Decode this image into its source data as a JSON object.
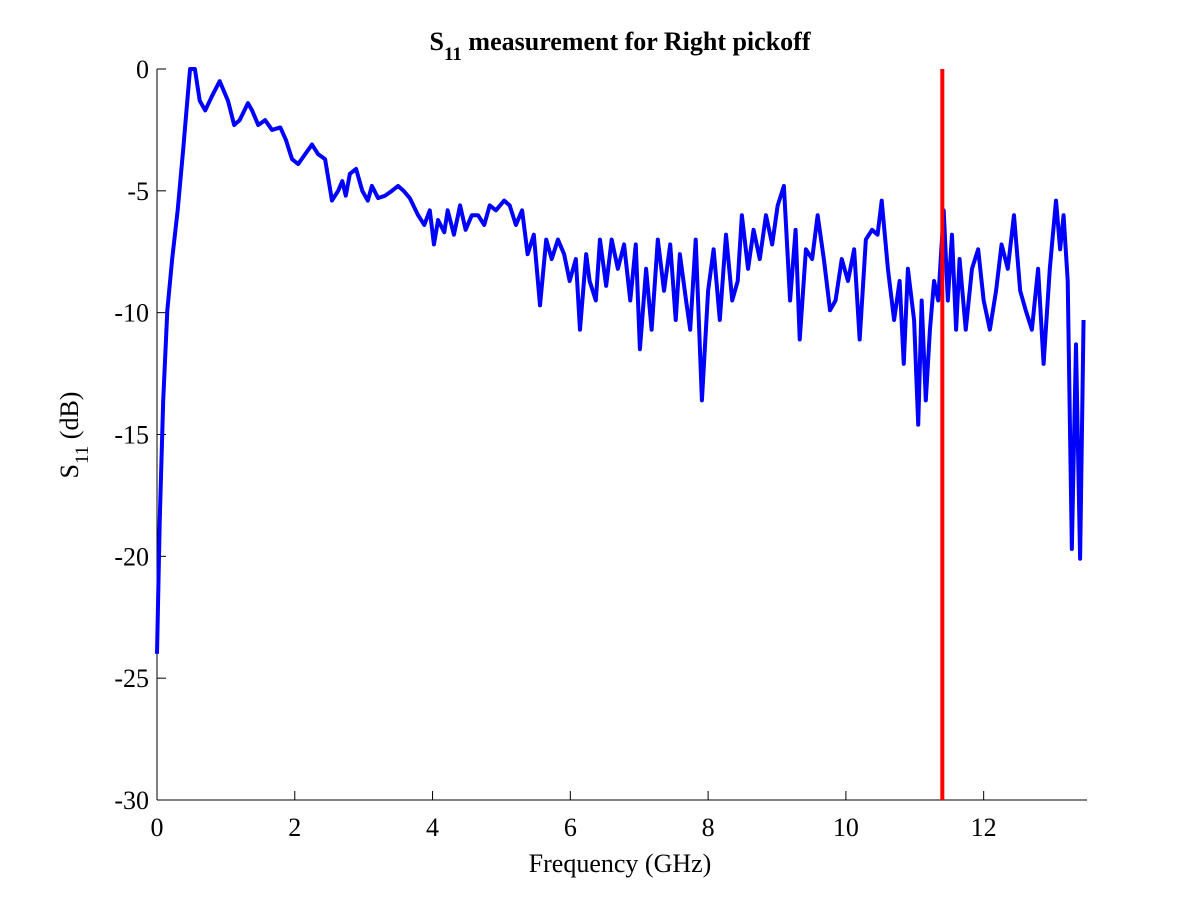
{
  "chart_data": {
    "type": "line",
    "title": [
      "S",
      "11",
      " measurement for Right pickoff"
    ],
    "y_label": [
      "S",
      "11",
      " (dB)"
    ],
    "x_label": "Frequency (GHz)",
    "xlim": [
      0,
      13.5
    ],
    "ylim": [
      -30,
      0
    ],
    "xticks": [
      0,
      2,
      4,
      6,
      8,
      10,
      12
    ],
    "yticks": [
      -30,
      -25,
      -20,
      -15,
      -10,
      -5,
      0
    ],
    "grid": false,
    "series": [
      {
        "color": "#0000ff",
        "x": [
          0.0,
          0.04,
          0.09,
          0.15,
          0.22,
          0.3,
          0.38,
          0.44,
          0.48,
          0.55,
          0.62,
          0.7,
          0.8,
          0.91,
          1.03,
          1.12,
          1.2,
          1.32,
          1.38,
          1.47,
          1.57,
          1.67,
          1.79,
          1.87,
          1.96,
          2.05,
          2.15,
          2.25,
          2.34,
          2.44,
          2.54,
          2.63,
          2.69,
          2.74,
          2.8,
          2.89,
          2.98,
          3.06,
          3.12,
          3.21,
          3.31,
          3.41,
          3.5,
          3.58,
          3.67,
          3.79,
          3.88,
          3.96,
          4.02,
          4.08,
          4.17,
          4.22,
          4.31,
          4.4,
          4.48,
          4.57,
          4.66,
          4.75,
          4.83,
          4.92,
          5.04,
          5.12,
          5.21,
          5.3,
          5.38,
          5.47,
          5.56,
          5.65,
          5.73,
          5.82,
          5.91,
          5.99,
          6.08,
          6.14,
          6.23,
          6.28,
          6.37,
          6.43,
          6.52,
          6.6,
          6.69,
          6.78,
          6.87,
          6.95,
          7.01,
          7.1,
          7.18,
          7.27,
          7.36,
          7.45,
          7.53,
          7.59,
          7.68,
          7.74,
          7.82,
          7.91,
          8.0,
          8.08,
          8.17,
          8.26,
          8.35,
          8.43,
          8.49,
          8.58,
          8.66,
          8.75,
          8.84,
          8.93,
          9.01,
          9.1,
          9.19,
          9.27,
          9.33,
          9.42,
          9.51,
          9.59,
          9.68,
          9.77,
          9.85,
          9.94,
          10.03,
          10.12,
          10.2,
          10.29,
          10.38,
          10.46,
          10.52,
          10.61,
          10.7,
          10.78,
          10.84,
          10.9,
          10.99,
          11.05,
          11.1,
          11.16,
          11.22,
          11.28,
          11.34,
          11.42,
          11.48,
          11.54,
          11.6,
          11.65,
          11.74,
          11.83,
          11.92,
          12.0,
          12.09,
          12.18,
          12.26,
          12.35,
          12.44,
          12.53,
          12.61,
          12.7,
          12.79,
          12.87,
          12.96,
          13.05,
          13.11,
          13.16,
          13.22,
          13.28,
          13.34,
          13.4,
          13.45
        ],
        "values": [
          -24.0,
          -18.5,
          -13.6,
          -9.9,
          -7.8,
          -5.8,
          -3.3,
          -1.3,
          0,
          0,
          -1.3,
          -1.7,
          -1.1,
          -0.5,
          -1.3,
          -2.3,
          -2.1,
          -1.4,
          -1.7,
          -2.3,
          -2.1,
          -2.5,
          -2.4,
          -2.9,
          -3.7,
          -3.9,
          -3.5,
          -3.1,
          -3.5,
          -3.7,
          -5.4,
          -5.0,
          -4.6,
          -5.2,
          -4.3,
          -4.1,
          -5.0,
          -5.4,
          -4.8,
          -5.3,
          -5.2,
          -5.0,
          -4.8,
          -5.0,
          -5.3,
          -6.0,
          -6.4,
          -5.8,
          -7.2,
          -6.2,
          -6.7,
          -5.8,
          -6.8,
          -5.6,
          -6.6,
          -6.0,
          -6.0,
          -6.4,
          -5.6,
          -5.8,
          -5.4,
          -5.6,
          -6.4,
          -5.8,
          -7.6,
          -6.8,
          -9.7,
          -7.0,
          -7.8,
          -7.0,
          -7.6,
          -8.7,
          -7.8,
          -10.7,
          -7.6,
          -8.7,
          -9.5,
          -7.0,
          -8.9,
          -7.0,
          -8.2,
          -7.2,
          -9.5,
          -7.2,
          -11.5,
          -8.2,
          -10.7,
          -7.0,
          -9.1,
          -7.2,
          -10.3,
          -7.6,
          -9.5,
          -10.7,
          -7.0,
          -13.6,
          -9.1,
          -7.4,
          -10.3,
          -6.8,
          -9.5,
          -8.7,
          -6.0,
          -8.2,
          -6.6,
          -7.8,
          -6.0,
          -7.2,
          -5.6,
          -4.8,
          -9.5,
          -6.6,
          -11.1,
          -7.4,
          -7.8,
          -6.0,
          -7.8,
          -9.9,
          -9.5,
          -7.8,
          -8.7,
          -7.4,
          -11.1,
          -7.0,
          -6.6,
          -6.8,
          -5.4,
          -8.2,
          -10.3,
          -8.7,
          -12.1,
          -8.2,
          -10.3,
          -14.6,
          -9.5,
          -13.6,
          -10.7,
          -8.7,
          -9.5,
          -5.8,
          -9.5,
          -6.8,
          -10.7,
          -7.8,
          -10.7,
          -8.2,
          -7.4,
          -9.5,
          -10.7,
          -9.1,
          -7.2,
          -8.2,
          -6.0,
          -9.1,
          -9.9,
          -10.7,
          -8.2,
          -12.1,
          -8.2,
          -5.4,
          -7.4,
          -6.0,
          -8.7,
          -19.7,
          -11.3,
          -20.1,
          -10.3
        ]
      },
      {
        "color": "#ff0000",
        "x": [
          11.4,
          11.4
        ],
        "values": [
          -30,
          0
        ]
      }
    ]
  }
}
